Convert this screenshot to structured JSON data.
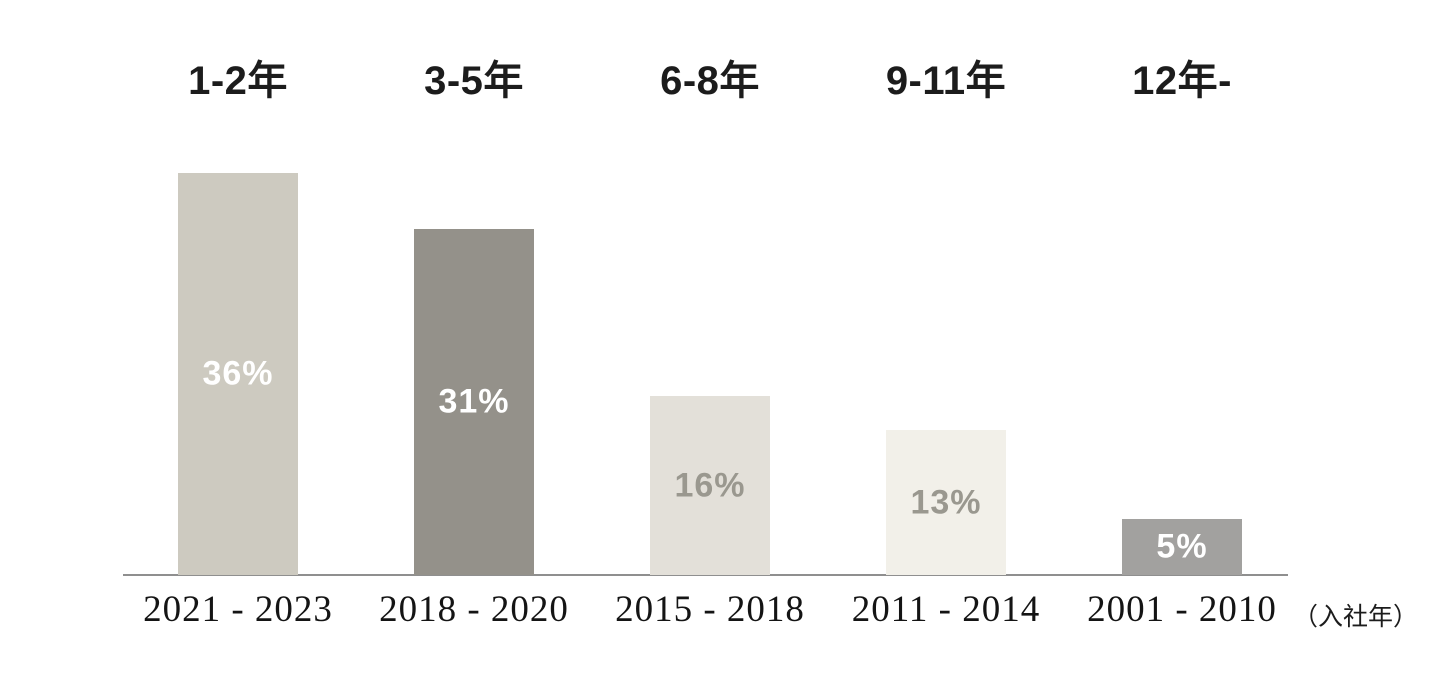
{
  "chart_data": {
    "type": "bar",
    "title": "",
    "categories": [
      "2021 - 2023",
      "2018 - 2020",
      "2015 - 2018",
      "2011 - 2014",
      "2001 - 2010"
    ],
    "group_labels": [
      "1-2年",
      "3-5年",
      "6-8年",
      "9-11年",
      "12年-"
    ],
    "values": [
      36,
      31,
      16,
      13,
      5
    ],
    "unit": "%",
    "xlabel": "（入社年）",
    "ylabel": "",
    "ylim": [
      0,
      40
    ],
    "grid": false,
    "legend_position": "none",
    "bars": [
      {
        "tenure_label": "1-2年",
        "category": "2021 - 2023",
        "value": 36,
        "value_label": "36%",
        "bar_color": "#cdcac0",
        "value_label_color": "#ffffff"
      },
      {
        "tenure_label": "3-5年",
        "category": "2018 - 2020",
        "value": 31,
        "value_label": "31%",
        "bar_color": "#94918a",
        "value_label_color": "#ffffff"
      },
      {
        "tenure_label": "6-8年",
        "category": "2015 - 2018",
        "value": 16,
        "value_label": "16%",
        "bar_color": "#e3e0d9",
        "value_label_color": "#9a988f"
      },
      {
        "tenure_label": "9-11年",
        "category": "2011 - 2014",
        "value": 13,
        "value_label": "13%",
        "bar_color": "#f2f0e9",
        "value_label_color": "#9a988f"
      },
      {
        "tenure_label": "12年-",
        "category": "2001 - 2010",
        "value": 5,
        "value_label": "5%",
        "bar_color": "#a2a19f",
        "value_label_color": "#ffffff"
      }
    ]
  },
  "colors": {
    "background": "#ffffff",
    "axis_line": "#8f8f8f",
    "heading_text": "#1c1c1c",
    "tick_text": "#141414"
  }
}
